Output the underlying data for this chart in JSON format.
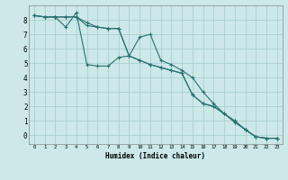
{
  "xlabel": "Humidex (Indice chaleur)",
  "bg_color": "#cce8e8",
  "grid_color": "#aacfcf",
  "line_color": "#2a7070",
  "xlim": [
    -0.5,
    23.5
  ],
  "ylim": [
    -0.6,
    9.0
  ],
  "xticks": [
    0,
    1,
    2,
    3,
    4,
    5,
    6,
    7,
    8,
    9,
    10,
    11,
    12,
    13,
    14,
    15,
    16,
    17,
    18,
    19,
    20,
    21,
    22,
    23
  ],
  "yticks": [
    0,
    1,
    2,
    3,
    4,
    5,
    6,
    7,
    8
  ],
  "series1_x": [
    0,
    1,
    2,
    3,
    4,
    5,
    6,
    7,
    8,
    9,
    10,
    11,
    12,
    13,
    14,
    15,
    16,
    17,
    18,
    19,
    20,
    21,
    22,
    23
  ],
  "series1_y": [
    8.3,
    8.2,
    8.2,
    8.2,
    8.2,
    7.6,
    7.5,
    7.4,
    7.4,
    5.5,
    5.2,
    4.9,
    4.7,
    4.5,
    4.3,
    2.8,
    2.2,
    2.0,
    1.5,
    1.0,
    0.4,
    -0.1,
    -0.2,
    -0.2
  ],
  "series2_x": [
    0,
    1,
    2,
    3,
    4,
    5,
    6,
    7,
    8,
    9,
    10,
    11,
    12,
    13,
    14,
    15,
    16,
    17,
    18,
    19,
    20,
    21,
    22,
    23
  ],
  "series2_y": [
    8.3,
    8.2,
    8.2,
    7.5,
    8.5,
    4.9,
    4.8,
    4.8,
    5.4,
    5.5,
    6.8,
    7.0,
    5.2,
    4.9,
    4.5,
    4.0,
    3.0,
    2.2,
    1.5,
    0.9,
    0.4,
    -0.1,
    -0.2,
    -0.2
  ],
  "series3_x": [
    0,
    1,
    2,
    3,
    4,
    5,
    6,
    7,
    8,
    9,
    10,
    11,
    12,
    13,
    14,
    15,
    16,
    17,
    18,
    19,
    20,
    21,
    22,
    23
  ],
  "series3_y": [
    8.3,
    8.2,
    8.2,
    8.2,
    8.2,
    7.8,
    7.5,
    7.4,
    7.4,
    5.5,
    5.2,
    4.9,
    4.7,
    4.5,
    4.3,
    2.8,
    2.2,
    2.0,
    1.5,
    1.0,
    0.4,
    -0.1,
    -0.2,
    -0.2
  ]
}
